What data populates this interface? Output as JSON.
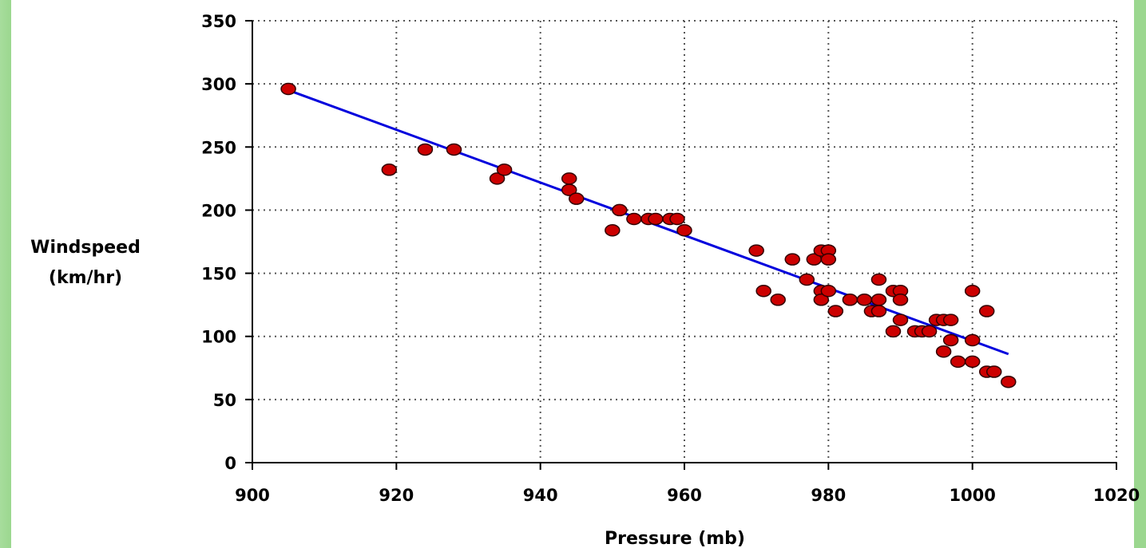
{
  "chart_data": {
    "type": "scatter",
    "title": "",
    "xlabel": "Pressure (mb)",
    "ylabel_lines": [
      "Windspeed",
      "(km/hr)"
    ],
    "xlim": [
      900,
      1020
    ],
    "ylim": [
      0,
      350
    ],
    "x_ticks": [
      900,
      920,
      940,
      960,
      980,
      1000,
      1020
    ],
    "x_tick_labels": [
      "900",
      "920",
      "940",
      "960",
      "980",
      "1000",
      "1020"
    ],
    "y_ticks": [
      0,
      50,
      100,
      150,
      200,
      250,
      300,
      350
    ],
    "y_tick_labels": [
      "0",
      "50",
      "100",
      "150",
      "200",
      "250",
      "300",
      "350"
    ],
    "grid": true,
    "legend": "none",
    "colors": {
      "point_fill": "#cc0000",
      "point_stroke": "#330000",
      "trend_line": "#0000dd",
      "grid": "#555555"
    },
    "series": [
      {
        "points": [
          [
            905,
            296
          ],
          [
            919,
            232
          ],
          [
            924,
            248
          ],
          [
            928,
            248
          ],
          [
            934,
            225
          ],
          [
            935,
            232
          ],
          [
            944,
            225
          ],
          [
            944,
            216
          ],
          [
            945,
            209
          ],
          [
            950,
            184
          ],
          [
            951,
            200
          ],
          [
            953,
            193
          ],
          [
            955,
            193
          ],
          [
            956,
            193
          ],
          [
            958,
            193
          ],
          [
            959,
            193
          ],
          [
            960,
            184
          ],
          [
            970,
            168
          ],
          [
            971,
            136
          ],
          [
            973,
            129
          ],
          [
            975,
            161
          ],
          [
            977,
            145
          ],
          [
            978,
            161
          ],
          [
            979,
            168
          ],
          [
            979,
            136
          ],
          [
            979,
            129
          ],
          [
            980,
            168
          ],
          [
            980,
            161
          ],
          [
            980,
            136
          ],
          [
            981,
            120
          ],
          [
            983,
            129
          ],
          [
            985,
            129
          ],
          [
            986,
            120
          ],
          [
            987,
            145
          ],
          [
            987,
            129
          ],
          [
            987,
            120
          ],
          [
            989,
            136
          ],
          [
            989,
            104
          ],
          [
            990,
            136
          ],
          [
            990,
            129
          ],
          [
            990,
            113
          ],
          [
            992,
            104
          ],
          [
            993,
            104
          ],
          [
            994,
            104
          ],
          [
            995,
            113
          ],
          [
            996,
            113
          ],
          [
            996,
            88
          ],
          [
            997,
            113
          ],
          [
            997,
            97
          ],
          [
            998,
            80
          ],
          [
            1000,
            136
          ],
          [
            1000,
            97
          ],
          [
            1000,
            80
          ],
          [
            1002,
            120
          ],
          [
            1002,
            72
          ],
          [
            1003,
            72
          ],
          [
            1005,
            64
          ]
        ]
      }
    ],
    "trend_line": {
      "x": [
        905,
        1005
      ],
      "y": [
        295,
        86
      ]
    }
  }
}
